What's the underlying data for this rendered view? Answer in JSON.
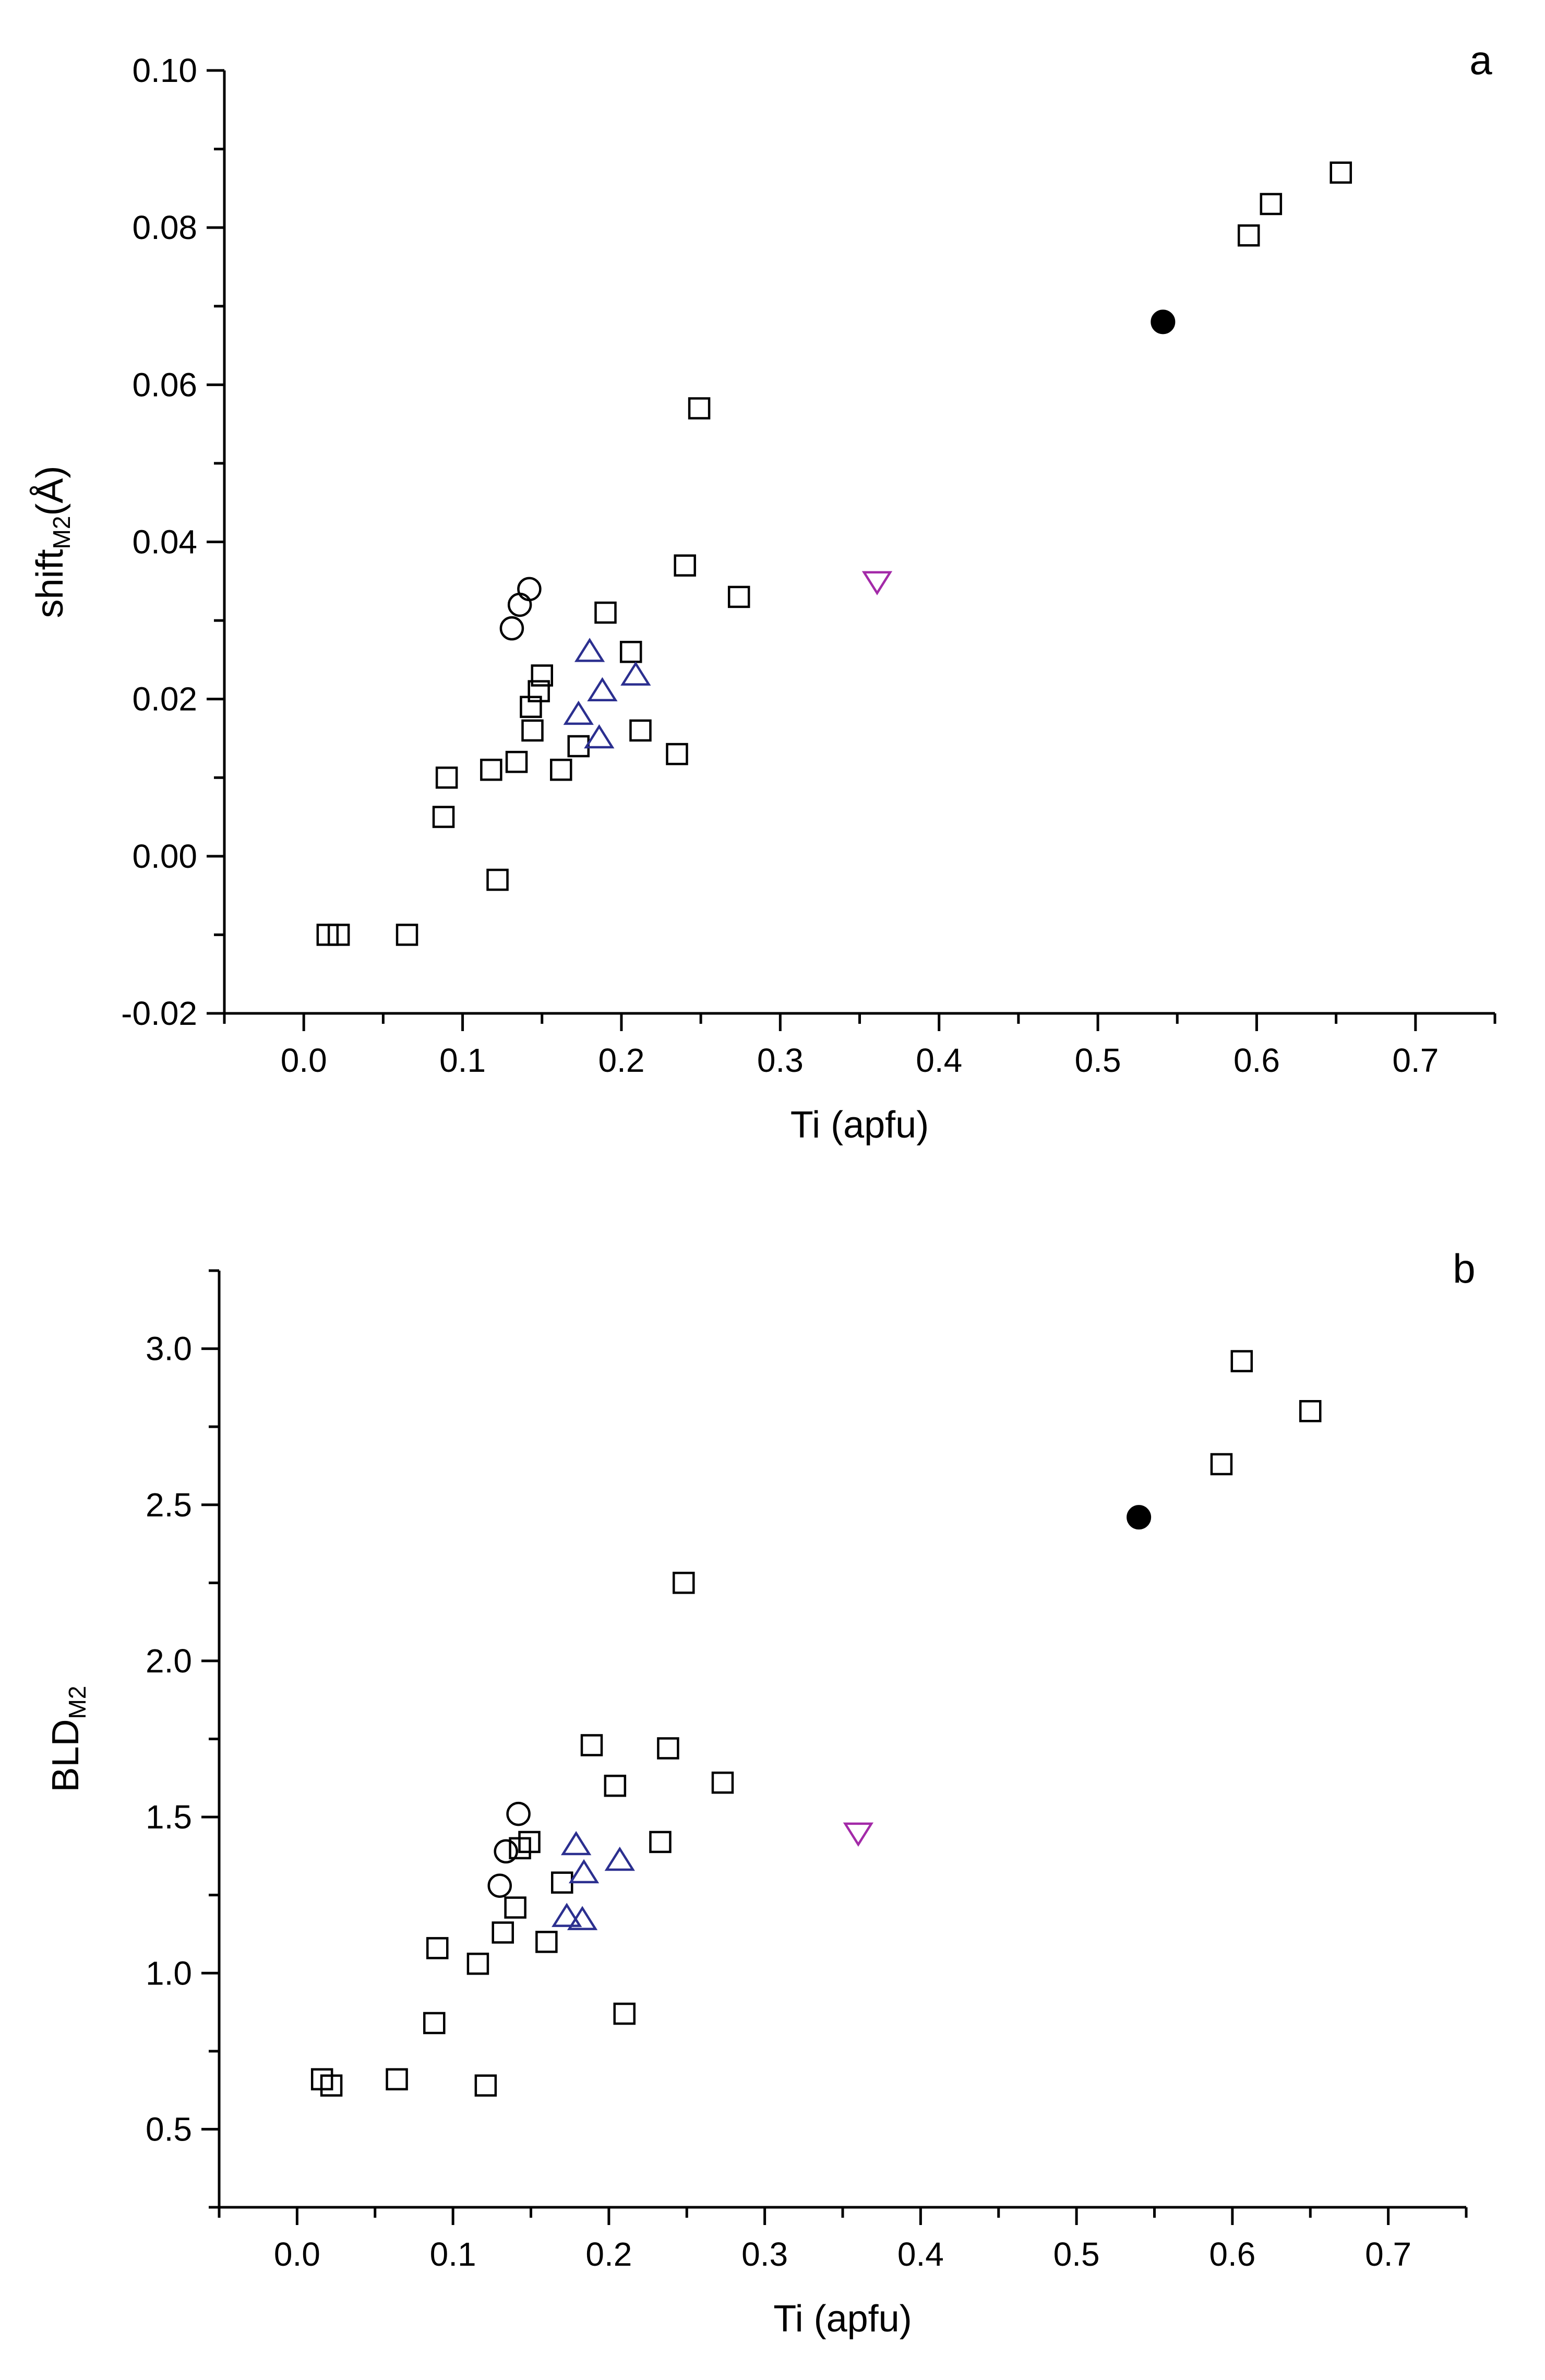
{
  "colors": {
    "square": "#000000",
    "circle_open": "#000000",
    "circle_filled": "#000000",
    "triangle_up": "#2b2f8f",
    "triangle_down": "#a32aa8",
    "axis": "#000000"
  },
  "chart_data": [
    {
      "type": "scatter",
      "panel_label": "a",
      "xlabel": "Ti (apfu)",
      "ylabel": {
        "base": "shift",
        "subscript": "M2",
        "unit": "(Å)"
      },
      "xlim": [
        -0.05,
        0.75
      ],
      "ylim": [
        -0.02,
        0.1
      ],
      "xticks": [
        "0.0",
        "0.1",
        "0.2",
        "0.3",
        "0.4",
        "0.5",
        "0.6",
        "0.7"
      ],
      "yticks": [
        "-0.02",
        "0.00",
        "0.02",
        "0.04",
        "0.06",
        "0.08",
        "0.10"
      ],
      "series": [
        {
          "name": "open squares",
          "marker": "square",
          "x": [
            0.015,
            0.022,
            0.065,
            0.088,
            0.09,
            0.118,
            0.122,
            0.134,
            0.143,
            0.144,
            0.148,
            0.15,
            0.162,
            0.173,
            0.19,
            0.206,
            0.212,
            0.235,
            0.24,
            0.249,
            0.274,
            0.595,
            0.609,
            0.653
          ],
          "y": [
            -0.01,
            -0.01,
            -0.01,
            0.005,
            0.01,
            0.011,
            -0.003,
            0.012,
            0.019,
            0.016,
            0.021,
            0.023,
            0.011,
            0.014,
            0.031,
            0.026,
            0.016,
            0.013,
            0.037,
            0.057,
            0.033,
            0.079,
            0.083,
            0.087
          ]
        },
        {
          "name": "open circles",
          "marker": "circle-open",
          "x": [
            0.131,
            0.136,
            0.142
          ],
          "y": [
            0.029,
            0.032,
            0.034
          ]
        },
        {
          "name": "filled circle",
          "marker": "circle-filled",
          "x": [
            0.541
          ],
          "y": [
            0.068
          ]
        },
        {
          "name": "up triangles",
          "marker": "triangle-up",
          "x": [
            0.173,
            0.18,
            0.186,
            0.188,
            0.209
          ],
          "y": [
            0.018,
            0.026,
            0.015,
            0.021,
            0.023
          ]
        },
        {
          "name": "down triangle",
          "marker": "triangle-down",
          "x": [
            0.361
          ],
          "y": [
            0.035
          ]
        }
      ]
    },
    {
      "type": "scatter",
      "panel_label": "b",
      "xlabel": "Ti (apfu)",
      "ylabel": {
        "base": "BLD",
        "subscript": "M2",
        "unit": ""
      },
      "xlim": [
        -0.05,
        0.75
      ],
      "ylim": [
        0.25,
        3.25
      ],
      "xticks": [
        "0.0",
        "0.1",
        "0.2",
        "0.3",
        "0.4",
        "0.5",
        "0.6",
        "0.7"
      ],
      "yticks": [
        "0.5",
        "1.0",
        "1.5",
        "2.0",
        "2.5",
        "3.0"
      ],
      "series": [
        {
          "name": "open squares",
          "marker": "square",
          "x": [
            0.016,
            0.022,
            0.064,
            0.088,
            0.09,
            0.116,
            0.121,
            0.132,
            0.14,
            0.143,
            0.149,
            0.16,
            0.17,
            0.189,
            0.204,
            0.21,
            0.233,
            0.238,
            0.248,
            0.273,
            0.593,
            0.606,
            0.65
          ],
          "y": [
            0.66,
            0.64,
            0.66,
            0.84,
            1.08,
            1.03,
            0.64,
            1.13,
            1.21,
            1.4,
            1.42,
            1.1,
            1.29,
            1.73,
            1.6,
            0.87,
            1.42,
            1.72,
            2.25,
            1.61,
            2.63,
            2.96,
            2.8
          ]
        },
        {
          "name": "open circles",
          "marker": "circle-open",
          "x": [
            0.13,
            0.134,
            0.142
          ],
          "y": [
            1.28,
            1.39,
            1.51
          ]
        },
        {
          "name": "filled circle",
          "marker": "circle-filled",
          "x": [
            0.54
          ],
          "y": [
            2.46
          ]
        },
        {
          "name": "up triangles",
          "marker": "triangle-up",
          "x": [
            0.173,
            0.179,
            0.183,
            0.184,
            0.207
          ],
          "y": [
            1.18,
            1.41,
            1.17,
            1.32,
            1.36
          ]
        },
        {
          "name": "down triangle",
          "marker": "triangle-down",
          "x": [
            0.36
          ],
          "y": [
            1.45
          ]
        }
      ]
    }
  ]
}
